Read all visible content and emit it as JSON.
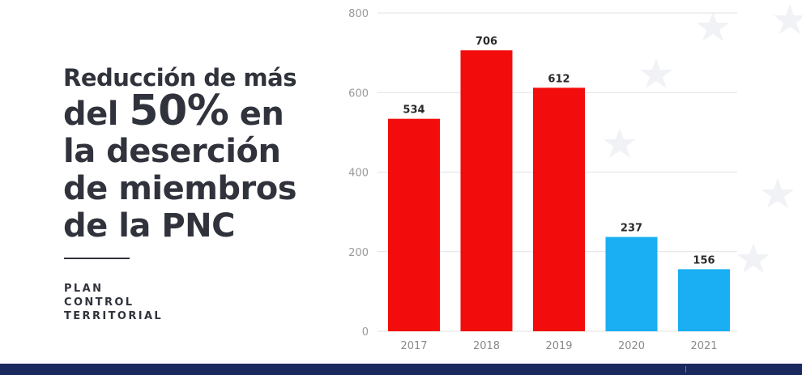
{
  "headline": {
    "line1": "Reducción de más",
    "line2_pre": "del ",
    "line2_big": "50%",
    "line2_post": " en",
    "line3": "la deserción",
    "line4": "de miembros",
    "line5": "de la PNC"
  },
  "subtitle": {
    "line1": "PLAN",
    "line2": "CONTROL",
    "line3": "TERRITORIAL"
  },
  "chart_data": {
    "type": "bar",
    "categories": [
      "2017",
      "2018",
      "2019",
      "2020",
      "2021"
    ],
    "values": [
      534,
      706,
      612,
      237,
      156
    ],
    "bar_colors": [
      "#f20c0c",
      "#f20c0c",
      "#f20c0c",
      "#1aaef2",
      "#1aaef2"
    ],
    "ylim": [
      0,
      800
    ],
    "yticks": [
      0,
      200,
      400,
      600,
      800
    ],
    "grid": true,
    "legend": "none"
  }
}
